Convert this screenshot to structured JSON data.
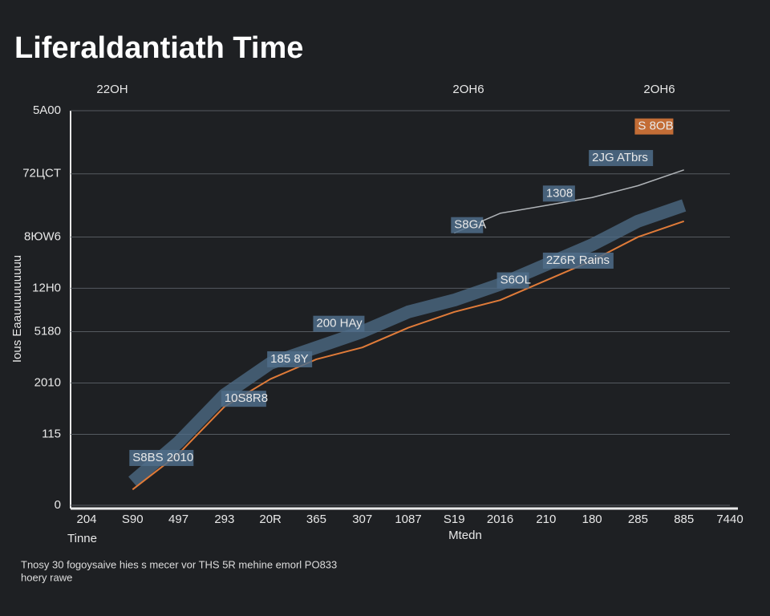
{
  "chart_data": {
    "type": "line",
    "title": "Liferaldantiath Time",
    "x_label": "Mtedn",
    "corner_label": "Tinne",
    "y_label": "Ious Eaauuuuuuuuu",
    "top_labels": [
      "22OH",
      "2OH6",
      "2OH6"
    ],
    "footnote": [
      "Tnosy 30 fogoysaive hies s mecer vor THS 5R mehine emorl PO833",
      "hoery rawe"
    ],
    "categories": [
      "204",
      "S90",
      "497",
      "293",
      "20R",
      "365",
      "307",
      "1087",
      "S19",
      "2016",
      "210",
      "180",
      "285",
      "885",
      "7440"
    ],
    "ylim": [
      0,
      100
    ],
    "yticks": [
      0,
      {
        "value": 18,
        "label": "115"
      },
      {
        "value": 31,
        "label": "2010"
      },
      {
        "value": 44,
        "label": "5180"
      },
      {
        "value": 55,
        "label": "12H0"
      },
      {
        "value": 68,
        "label": "8ЮW6"
      },
      {
        "value": 84,
        "label": "72ЦCT"
      },
      {
        "value": 100,
        "label": "5A00"
      }
    ],
    "grid": true,
    "series": [
      {
        "color": "#4f6d8a",
        "line_width": 16,
        "values": [
          null,
          6,
          16,
          28,
          36,
          40,
          44,
          49,
          52,
          56,
          61,
          66,
          72,
          76,
          null
        ]
      },
      {
        "color": "#e07b39",
        "line_width": 2,
        "values": [
          null,
          4,
          13,
          25,
          32,
          37,
          40,
          45,
          49,
          52,
          57,
          62,
          68,
          72,
          null
        ]
      },
      {
        "color": "#b0b4b8",
        "line_width": 1.5,
        "values": [
          null,
          null,
          null,
          null,
          null,
          null,
          null,
          null,
          69,
          74,
          76,
          78,
          81,
          85,
          null
        ]
      }
    ],
    "annotations": [
      {
        "text": "S 8OB",
        "x": "285",
        "y": 96,
        "color": "#e07b39"
      },
      {
        "text": "2JG ATbrs",
        "x": "180",
        "y": 88,
        "color": "#4f6d8a"
      },
      {
        "text": "1308",
        "x": "210",
        "y": 79,
        "color": "#4f6d8a"
      },
      {
        "text": "S8GA",
        "x": "S19",
        "y": 71,
        "color": "#4f6d8a"
      },
      {
        "text": "S6OL",
        "x": "2016",
        "y": 57,
        "color": "#4f6d8a"
      },
      {
        "text": "2Z6R Rains",
        "x": "210",
        "y": 62,
        "color": "#4f6d8a"
      },
      {
        "text": "200 HAy",
        "x": "365",
        "y": 46,
        "color": "#4f6d8a"
      },
      {
        "text": "185 8Y",
        "x": "20R",
        "y": 37,
        "color": "#4f6d8a"
      },
      {
        "text": "10S8R8",
        "x": "293",
        "y": 27,
        "color": "#4f6d8a"
      },
      {
        "text": "S8BS 2010",
        "x": "S90",
        "y": 12,
        "color": "#4f6d8a"
      }
    ]
  }
}
